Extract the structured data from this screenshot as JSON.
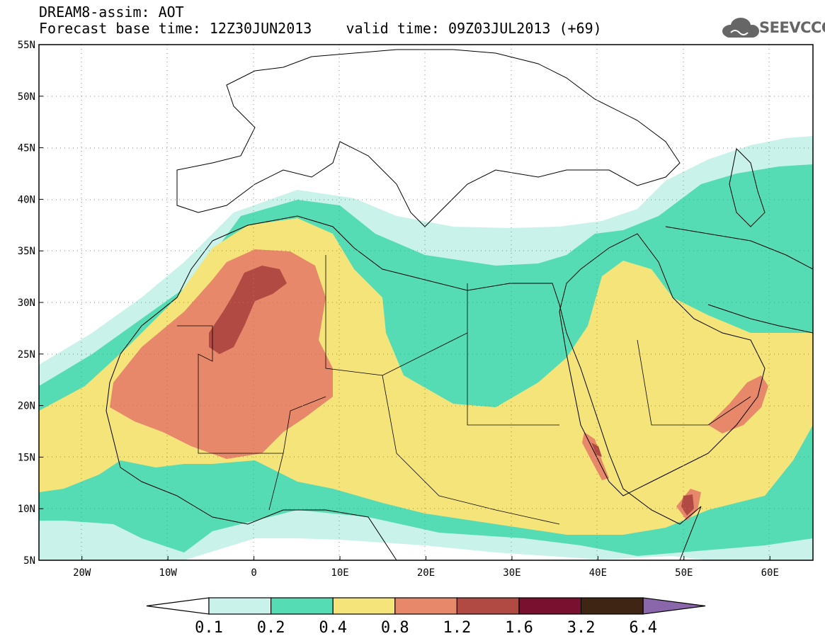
{
  "header": {
    "title": "DREAM8-assim: AOT",
    "subtitle": "Forecast base time: 12Z30JUN2013    valid time: 09Z03JUL2013 (+69)"
  },
  "logo": {
    "text": "SEEVCCC",
    "icon": "cloud-icon"
  },
  "map": {
    "lat_labels": [
      "55N",
      "50N",
      "45N",
      "40N",
      "35N",
      "30N",
      "25N",
      "20N",
      "15N",
      "10N",
      "5N"
    ],
    "lon_labels": [
      "20W",
      "10W",
      "0",
      "10E",
      "20E",
      "30E",
      "40E",
      "50E",
      "60E"
    ],
    "lon_range": [
      -25,
      65
    ],
    "lat_range": [
      5,
      55
    ],
    "grid": "dotted"
  },
  "colorbar": {
    "labels": [
      "0.1",
      "0.2",
      "0.4",
      "0.8",
      "1.2",
      "1.6",
      "3.2",
      "6.4"
    ],
    "colors": [
      "#ffffff",
      "#c8f2ea",
      "#55dcb4",
      "#f5e47a",
      "#e8886a",
      "#b04a42",
      "#7a1030",
      "#3f2614",
      "#8a66aa"
    ]
  }
}
